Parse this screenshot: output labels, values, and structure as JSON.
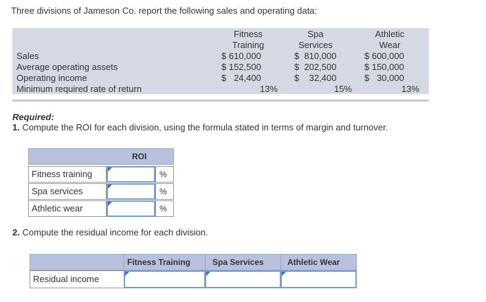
{
  "intro": "Three divisions of Jameson Co. report the following sales and operating data:",
  "data_table": {
    "columns": [
      {
        "line1": "Fitness",
        "line2": "Training"
      },
      {
        "line1": "Spa",
        "line2": "Services"
      },
      {
        "line1": "Athletic",
        "line2": "Wear"
      }
    ],
    "rows": [
      {
        "label": "Sales",
        "values": [
          "$ 610,000",
          "$  810,000",
          "$ 600,000"
        ]
      },
      {
        "label": "Average operating assets",
        "values": [
          "$ 152,500",
          "$  202,500",
          "$ 150,000"
        ]
      },
      {
        "label": "Operating income",
        "values": [
          "$   24,400",
          "$    32,400",
          "$   30,000"
        ]
      },
      {
        "label": "Minimum required rate of return",
        "values": [
          "13%",
          "15%",
          "13%"
        ]
      }
    ]
  },
  "required_label": "Required:",
  "question1": {
    "number": "1.",
    "text": "Compute the ROI for each division, using the formula stated in terms of margin and turnover."
  },
  "roi_table": {
    "header": "ROI",
    "rows": [
      {
        "label": "Fitness training",
        "value": "",
        "unit": "%"
      },
      {
        "label": "Spa services",
        "value": "",
        "unit": "%"
      },
      {
        "label": "Athletic wear",
        "value": "",
        "unit": "%"
      }
    ]
  },
  "question2": {
    "number": "2.",
    "text": "Compute the residual income for each division."
  },
  "residual_table": {
    "headers": [
      "Fitness Training",
      "Spa Services",
      "Athletic Wear"
    ],
    "row_label": "Residual income",
    "values": [
      "",
      "",
      ""
    ]
  },
  "colors": {
    "band": "#d5d9e4",
    "header": "#b8c2df",
    "input_border": "#7a9bd0",
    "input_marker": "#3b6fc7"
  }
}
